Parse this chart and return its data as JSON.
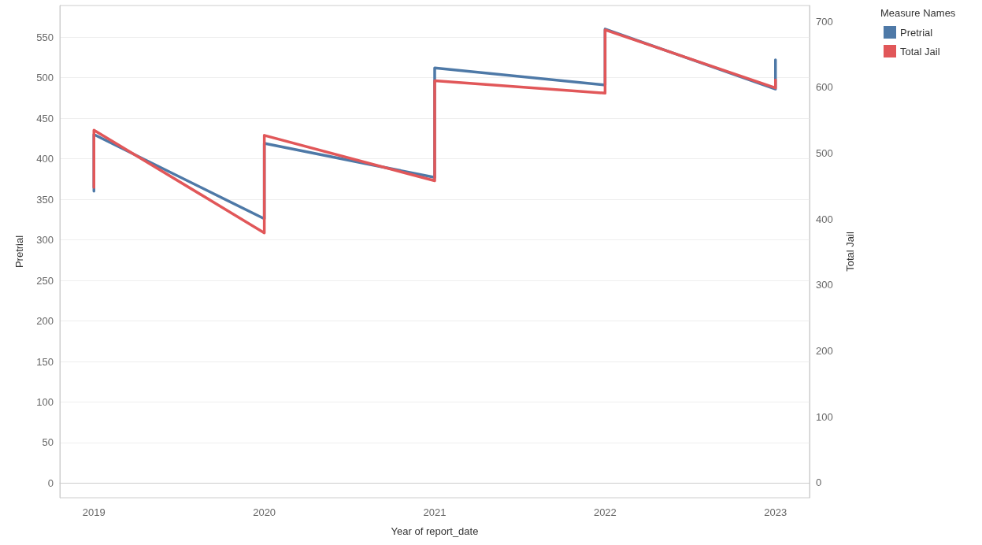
{
  "chart_data": {
    "type": "line",
    "xlabel": "Year of report_date",
    "ylabel": "Pretrial",
    "y2label": "Total Jail",
    "legend_title": "Measure Names",
    "x": [
      2019,
      2019,
      2020,
      2020,
      2021,
      2021,
      2022,
      2022,
      2023,
      2023
    ],
    "series": [
      {
        "name": "Pretrial",
        "color": "#4e79a7",
        "values": [
          360,
          430,
          326,
          419,
          377,
          512,
          491,
          560,
          486,
          522
        ]
      },
      {
        "name": "Total Jail",
        "color": "#e15759",
        "axis": "y2",
        "values": [
          448,
          535,
          379,
          527,
          458,
          610,
          591,
          687,
          599,
          611
        ]
      }
    ],
    "xlim": [
      2018.8,
      2023.2
    ],
    "xticks": [
      2019,
      2020,
      2021,
      2022,
      2023
    ],
    "ylim": [
      -18,
      589
    ],
    "yticks": [
      0,
      50,
      100,
      150,
      200,
      250,
      300,
      350,
      400,
      450,
      500,
      550
    ],
    "y2lim": [
      -23,
      724
    ],
    "y2ticks": [
      0,
      100,
      200,
      300,
      400,
      500,
      600,
      700
    ],
    "grid": "y",
    "legend": "top right",
    "marker": "none",
    "line_style": "solid"
  }
}
